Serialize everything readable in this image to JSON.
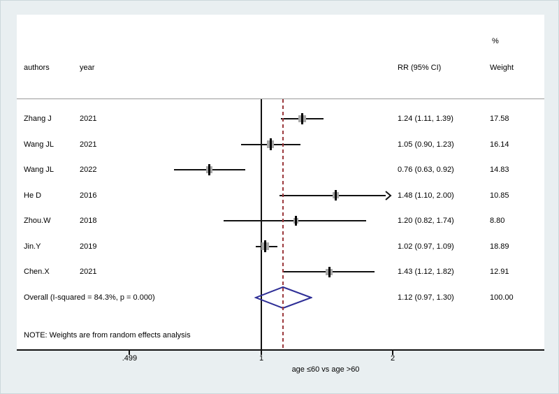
{
  "header": {
    "col_authors": "authors",
    "col_year": "year",
    "col_rr": "RR (95% CI)",
    "col_pct": "%",
    "col_weight": "Weight"
  },
  "chart_data": {
    "type": "forest",
    "x_scale": "log2",
    "x_ticks": [
      {
        "label": ".499",
        "value": 0.499
      },
      {
        "label": "1",
        "value": 1
      },
      {
        "label": "2",
        "value": 2
      }
    ],
    "xlabel": "age ≤60 vs age >60",
    "studies": [
      {
        "author": "Zhang J",
        "year": "2021",
        "rr": 1.24,
        "lo": 1.11,
        "hi": 1.39,
        "rr_text": "1.24 (1.11, 1.39)",
        "weight": "17.58"
      },
      {
        "author": "Wang JL",
        "year": "2021",
        "rr": 1.05,
        "lo": 0.9,
        "hi": 1.23,
        "rr_text": "1.05 (0.90, 1.23)",
        "weight": "16.14"
      },
      {
        "author": "Wang JL",
        "year": "2022",
        "rr": 0.76,
        "lo": 0.63,
        "hi": 0.92,
        "rr_text": "0.76 (0.63, 0.92)",
        "weight": "14.83"
      },
      {
        "author": "He D",
        "year": "2016",
        "rr": 1.48,
        "lo": 1.1,
        "hi": 2.0,
        "rr_text": "1.48 (1.10, 2.00)",
        "weight": "10.85",
        "clipped_upper": true
      },
      {
        "author": "Zhou.W",
        "year": "2018",
        "rr": 1.2,
        "lo": 0.82,
        "hi": 1.74,
        "rr_text": "1.20 (0.82, 1.74)",
        "weight": "8.80"
      },
      {
        "author": "Jin.Y",
        "year": "2019",
        "rr": 1.02,
        "lo": 0.97,
        "hi": 1.09,
        "rr_text": "1.02 (0.97, 1.09)",
        "weight": "18.89"
      },
      {
        "author": "Chen.X",
        "year": "2021",
        "rr": 1.43,
        "lo": 1.12,
        "hi": 1.82,
        "rr_text": "1.43 (1.12, 1.82)",
        "weight": "12.91"
      }
    ],
    "overall": {
      "label": "Overall  (I-squared = 84.3%, p = 0.000)",
      "rr": 1.12,
      "lo": 0.97,
      "hi": 1.3,
      "rr_text": "1.12 (0.97, 1.30)",
      "weight": "100.00"
    },
    "note": "NOTE: Weights are from random effects analysis",
    "colors": {
      "ref_line": "#9c393d",
      "diamond": "#2e2e96",
      "marker_box": "#a8a8a8",
      "axis": "#111111",
      "background": "#e9eff1",
      "plot_background": "#ffffff"
    }
  }
}
